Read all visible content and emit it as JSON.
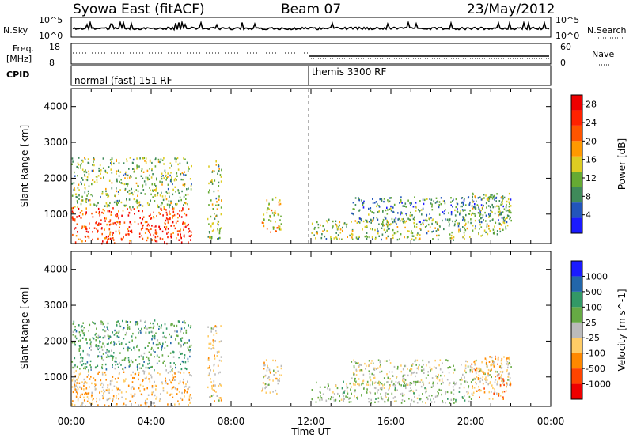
{
  "header": {
    "title": "Syowa East (fitACF)",
    "beam": "Beam 07",
    "date": "23/May/2012"
  },
  "nsky_panel": {
    "label": "N.Sky",
    "right_label": "N.Search",
    "ytick_top": "10^5",
    "ytick_bottom": "10^0"
  },
  "freq_panel": {
    "label_line1": "Freq.",
    "label_line2": "[MHz]",
    "ytick_top": "18",
    "ytick_bottom": "8",
    "right_label": "Nave",
    "right_tick_top": "60",
    "right_tick_bottom": "0"
  },
  "cpid_panel": {
    "label": "CPID",
    "mode1": "normal (fast) 151 RF",
    "mode2": "themis 3300 RF"
  },
  "colors": {
    "power_scale": [
      "#1a1aff",
      "#2255bb",
      "#3f8a5a",
      "#66aa33",
      "#ddcc22",
      "#ff9900",
      "#ff5500",
      "#ff2200",
      "#ee0000"
    ],
    "velocity_scale": [
      "#ee0000",
      "#ff4400",
      "#ff8800",
      "#ffcc66",
      "#bbbbbb",
      "#66aa44",
      "#339966",
      "#2266aa",
      "#1a1aff"
    ]
  },
  "chart_data": [
    {
      "type": "heatmap",
      "title": "Power",
      "ylabel": "Slant Range [km]",
      "xlabel": "Time UT",
      "ylim": [
        180,
        4500
      ],
      "x_ticks": [
        "00:00",
        "04:00",
        "08:00",
        "12:00",
        "16:00",
        "20:00",
        "00:00"
      ],
      "y_ticks": [
        "1000",
        "2000",
        "3000",
        "4000"
      ],
      "colorbar": {
        "label": "Power [dB]",
        "ticks": [
          "4",
          "8",
          "12",
          "16",
          "20",
          "24",
          "28"
        ],
        "range": [
          0,
          30
        ]
      },
      "regions": [
        {
          "t": [
            0,
            6
          ],
          "r": [
            200,
            1200
          ],
          "value": 24
        },
        {
          "t": [
            0,
            6
          ],
          "r": [
            1200,
            2600
          ],
          "value": 12
        },
        {
          "t": [
            6.8,
            7.5
          ],
          "r": [
            300,
            2500
          ],
          "value": 12
        },
        {
          "t": [
            9.5,
            10.5
          ],
          "r": [
            500,
            1500
          ],
          "value": 16
        },
        {
          "t": [
            12,
            20
          ],
          "r": [
            300,
            900
          ],
          "value": 12
        },
        {
          "t": [
            14,
            22
          ],
          "r": [
            800,
            1500
          ],
          "value": 8
        },
        {
          "t": [
            20,
            22
          ],
          "r": [
            400,
            1600
          ],
          "value": 12
        }
      ]
    },
    {
      "type": "heatmap",
      "title": "Velocity",
      "ylabel": "Slant Range [km]",
      "xlabel": "Time UT",
      "ylim": [
        180,
        4500
      ],
      "x_ticks": [
        "00:00",
        "04:00",
        "08:00",
        "12:00",
        "16:00",
        "20:00",
        "00:00"
      ],
      "y_ticks": [
        "1000",
        "2000",
        "3000",
        "4000"
      ],
      "colorbar": {
        "label": "Velocity [m s^-1]",
        "ticks": [
          "1000",
          "500",
          "100",
          "25",
          "-25",
          "-100",
          "-500",
          "-1000"
        ],
        "range": [
          -1200,
          1200
        ]
      },
      "regions": [
        {
          "t": [
            0,
            6
          ],
          "r": [
            200,
            1200
          ],
          "value": -300
        },
        {
          "t": [
            0,
            6
          ],
          "r": [
            1200,
            2600
          ],
          "value": 400
        },
        {
          "t": [
            6.8,
            7.5
          ],
          "r": [
            300,
            2500
          ],
          "value": -200
        },
        {
          "t": [
            9.5,
            10.5
          ],
          "r": [
            500,
            1500
          ],
          "value": -150
        },
        {
          "t": [
            12,
            20
          ],
          "r": [
            300,
            900
          ],
          "value": 100
        },
        {
          "t": [
            14,
            22
          ],
          "r": [
            800,
            1500
          ],
          "value": 0
        },
        {
          "t": [
            20,
            22
          ],
          "r": [
            400,
            1600
          ],
          "value": -400
        }
      ]
    }
  ]
}
